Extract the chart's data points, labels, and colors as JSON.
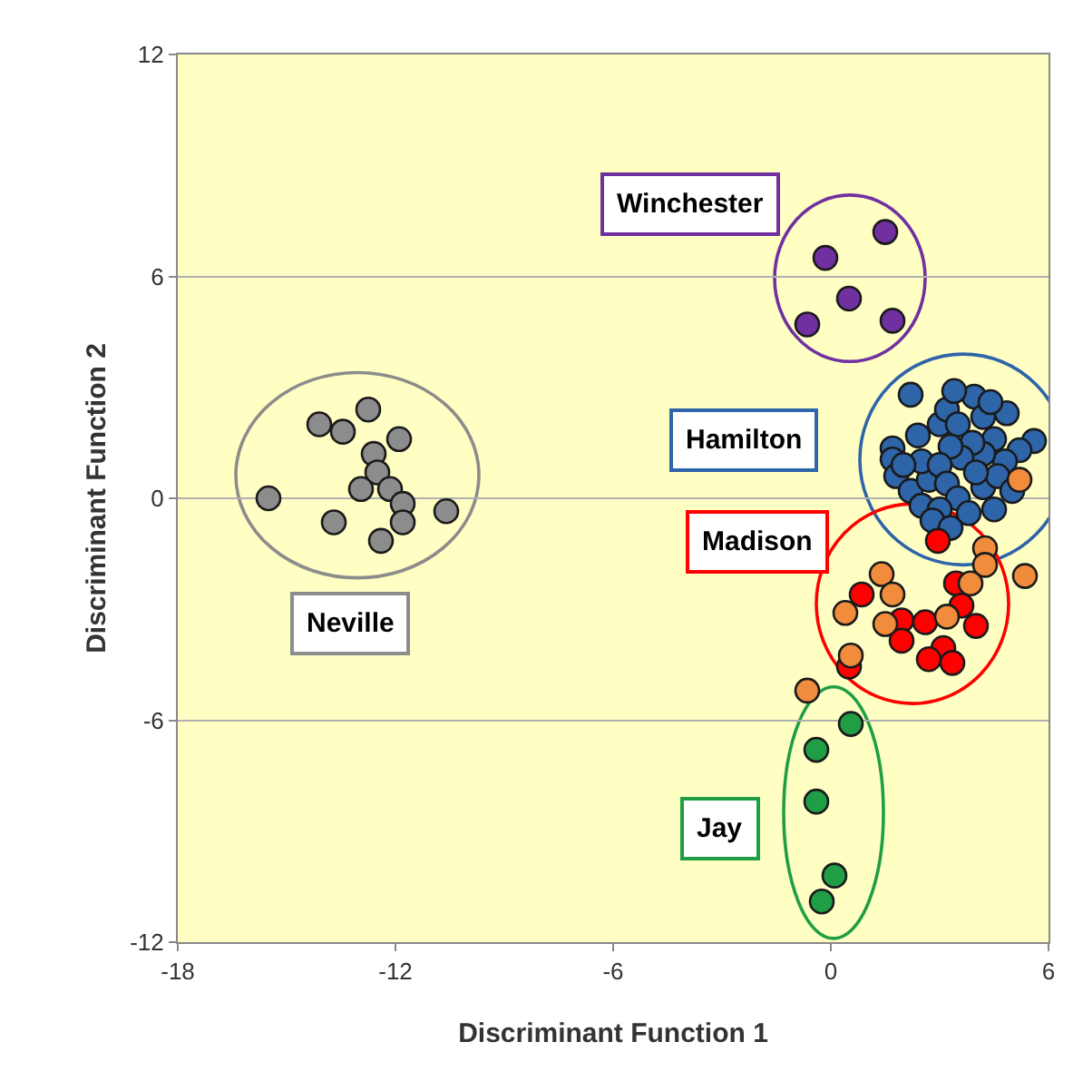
{
  "chart_data": {
    "type": "scatter",
    "xlabel": "Discriminant Function 1",
    "ylabel": "Discriminant Function 2",
    "xlim": [
      -18,
      6
    ],
    "ylim": [
      -12,
      12
    ],
    "xticks": [
      -18,
      -12,
      -6,
      0,
      6
    ],
    "yticks": [
      -12,
      -6,
      0,
      6,
      12
    ],
    "grid": "y",
    "legend": false,
    "marker": "circle",
    "series": [
      {
        "name": "Winchester",
        "color": "#7030a0",
        "x": [
          1.5,
          -0.15,
          0.5,
          -0.65,
          1.7
        ],
        "values": [
          7.2,
          6.5,
          5.4,
          4.7,
          4.8
        ]
      },
      {
        "name": "Hamilton",
        "color": "#2e64a8",
        "x": [
          2.2,
          1.7,
          1.7,
          1.8,
          2.2,
          2.5,
          2.7,
          2.5,
          3.0,
          3.2,
          3.5,
          3.95,
          4.2,
          4.85,
          5.6,
          5.2,
          4.8,
          4.5,
          4.2,
          3.9,
          3.6,
          3.3,
          3.0,
          3.2,
          3.5,
          3.0,
          2.8,
          3.3,
          3.8,
          4.2,
          4.6,
          5.0,
          4.5,
          4.0,
          2.4,
          3.4,
          4.4,
          2.0
        ],
        "values": [
          2.8,
          1.35,
          1.05,
          0.6,
          0.2,
          -0.2,
          0.5,
          1.0,
          2.0,
          2.4,
          2.0,
          2.75,
          2.2,
          2.3,
          1.55,
          1.3,
          1.0,
          1.6,
          1.2,
          1.5,
          1.1,
          1.4,
          0.9,
          0.4,
          0.0,
          -0.3,
          -0.6,
          -0.8,
          -0.4,
          0.3,
          0.6,
          0.2,
          -0.3,
          0.7,
          1.7,
          2.9,
          2.6,
          0.9
        ]
      },
      {
        "name": "Madison",
        "color": "#ff0000",
        "x": [
          2.95,
          0.85,
          3.45,
          3.6,
          4.0,
          1.95,
          2.6,
          1.95,
          3.1,
          2.7,
          3.35,
          0.5
        ],
        "values": [
          -1.15,
          -2.6,
          -2.3,
          -2.9,
          -3.45,
          -3.3,
          -3.35,
          -3.85,
          -4.05,
          -4.35,
          -4.45,
          -4.55
        ]
      },
      {
        "name": "Jay",
        "color": "#1f9e45",
        "x": [
          0.55,
          -0.4,
          -0.4,
          0.1,
          -0.25
        ],
        "values": [
          -6.1,
          -6.8,
          -8.2,
          -10.2,
          -10.9
        ]
      },
      {
        "name": "Neville",
        "color": "#8c8c8c",
        "x": [
          -12.75,
          -14.1,
          -13.45,
          -11.9,
          -12.6,
          -12.5,
          -12.95,
          -12.15,
          -15.5,
          -11.8,
          -11.8,
          -13.7,
          -10.6,
          -12.4
        ],
        "values": [
          2.4,
          2.0,
          1.8,
          1.6,
          1.2,
          0.7,
          0.25,
          0.25,
          0.0,
          -0.15,
          -0.65,
          -0.65,
          -0.35,
          -1.15
        ]
      },
      {
        "color": "#f08c3c",
        "x": [
          4.25,
          4.25,
          5.35,
          3.85,
          1.4,
          1.7,
          0.4,
          1.5,
          3.2,
          0.55,
          -0.65,
          5.2
        ],
        "values": [
          -1.35,
          -1.8,
          -2.1,
          -2.3,
          -2.05,
          -2.6,
          -3.1,
          -3.4,
          -3.2,
          -4.25,
          -5.2,
          0.5
        ]
      }
    ]
  }
}
